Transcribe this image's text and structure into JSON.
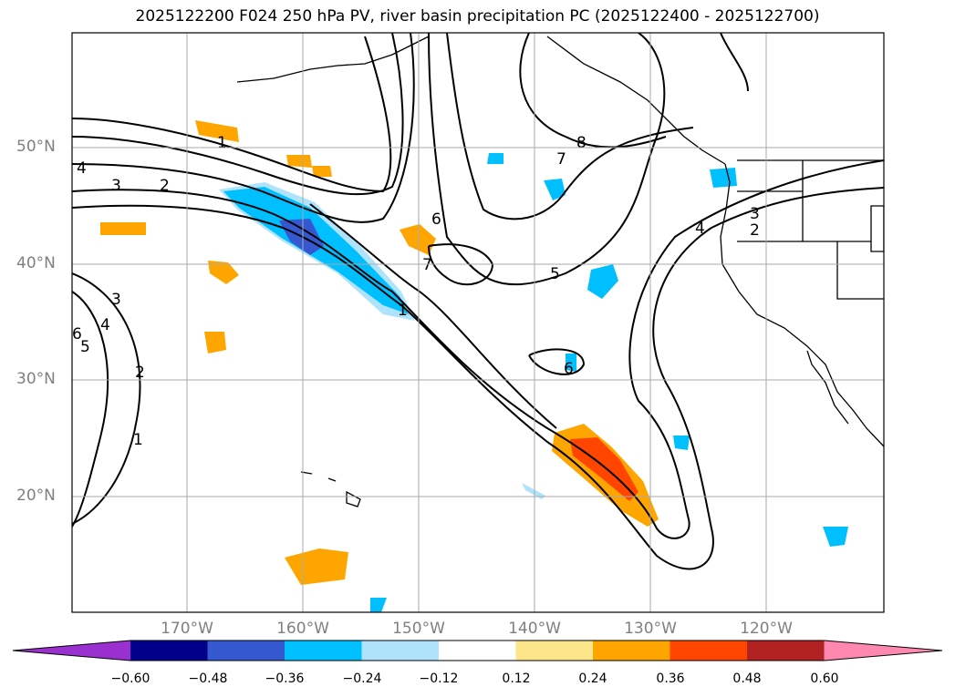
{
  "title": "2025122200 F024 250 hPa PV, river basin precipitation PC (2025122400 - 2025122700)",
  "lat_labels": [
    "50°N",
    "40°N",
    "30°N",
    "20°N"
  ],
  "lon_labels": [
    "170°W",
    "160°W",
    "150°W",
    "140°W",
    "130°W",
    "120°W"
  ],
  "contour_labels": [
    "1",
    "2",
    "3",
    "4",
    "5",
    "6",
    "7",
    "8"
  ],
  "colorbar": {
    "ticks": [
      "−0.60",
      "−0.48",
      "−0.36",
      "−0.24",
      "−0.12",
      "0.12",
      "0.24",
      "0.36",
      "0.48",
      "0.60"
    ],
    "colors": [
      "#9b30d0",
      "#00008b",
      "#3558d0",
      "#00bfff",
      "#aee3fb",
      "#ffffff",
      "#fde68a",
      "#ffa500",
      "#ff4500",
      "#b22222",
      "#ff88b0"
    ]
  },
  "colors": {
    "positive_anomaly": "#ffa500",
    "strong_positive": "#ff4500",
    "negative_anomaly": "#00bfff",
    "strong_negative": "#3558d0",
    "light_negative": "#aee3fb",
    "light_positive": "#fde68a"
  }
}
